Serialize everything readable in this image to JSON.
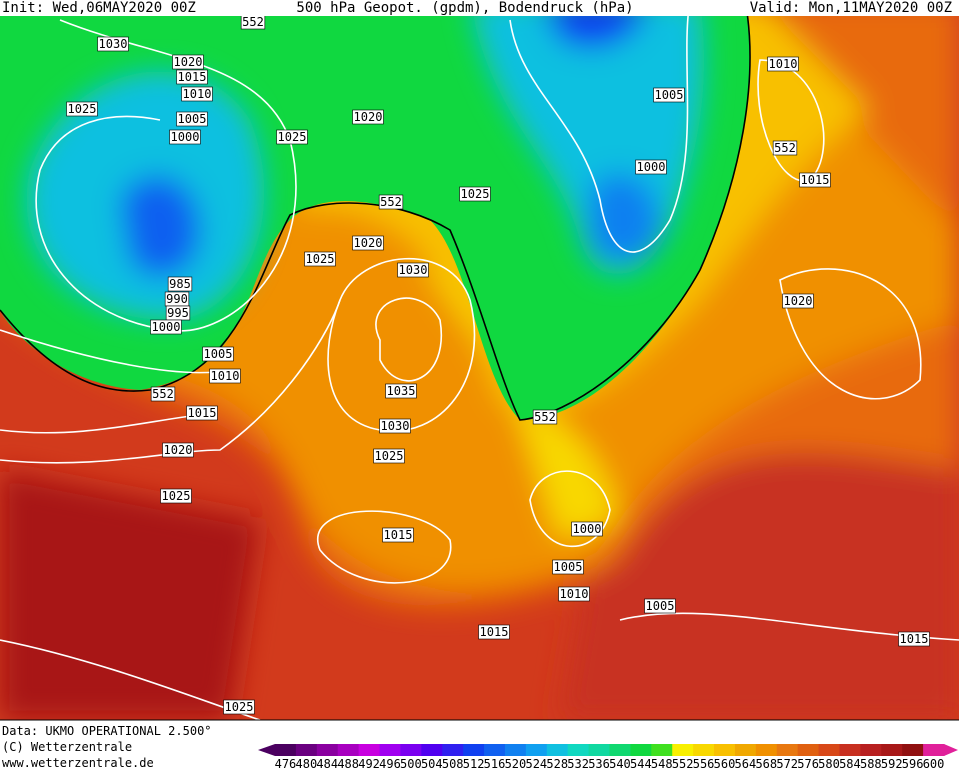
{
  "header": {
    "init": "Init: Wed,06MAY2020 00Z",
    "title": "500 hPa Geopot. (gpdm), Bodendruck (hPa)",
    "valid": "Valid: Mon,11MAY2020 00Z"
  },
  "map_labels": [
    "1030",
    "1020",
    "1015",
    "1010",
    "1005",
    "1000",
    "1025",
    "985",
    "990",
    "995",
    "1000",
    "1005",
    "1010",
    "1015",
    "1020",
    "1025",
    "552",
    "1025",
    "1020",
    "552",
    "1020",
    "1025",
    "1030",
    "1035",
    "1030",
    "1025",
    "1025",
    "1005",
    "1000",
    "552",
    "1010",
    "552",
    "1015",
    "1020",
    "1015",
    "1000",
    "1005",
    "1010",
    "1005",
    "1015",
    "1015",
    "1025",
    "552"
  ],
  "footer": {
    "data": "Data: UKMO OPERATIONAL 2.500°",
    "copyright": "(C) Wetterzentrale",
    "url": "www.wetterzentrale.de"
  },
  "legend": {
    "values": [
      476,
      480,
      484,
      488,
      492,
      496,
      500,
      504,
      508,
      512,
      516,
      520,
      524,
      528,
      532,
      536,
      540,
      544,
      548,
      552,
      556,
      560,
      564,
      568,
      572,
      576,
      580,
      584,
      588,
      592,
      596,
      600
    ],
    "colors": [
      "#4b0060",
      "#6a0080",
      "#8a00a0",
      "#a800c0",
      "#c800e0",
      "#a000f0",
      "#7a00f0",
      "#5000f0",
      "#3020f0",
      "#1040f0",
      "#1060f0",
      "#1080f0",
      "#10a0f0",
      "#10c0e0",
      "#10d8c0",
      "#10d8a0",
      "#10d870",
      "#10d840",
      "#40e020",
      "#f8f000",
      "#f8d800",
      "#f8c000",
      "#f0a800",
      "#f09000",
      "#e87810",
      "#e06010",
      "#d84818",
      "#c83020",
      "#b82020",
      "#a81818",
      "#901010",
      "#e0209a"
    ]
  }
}
